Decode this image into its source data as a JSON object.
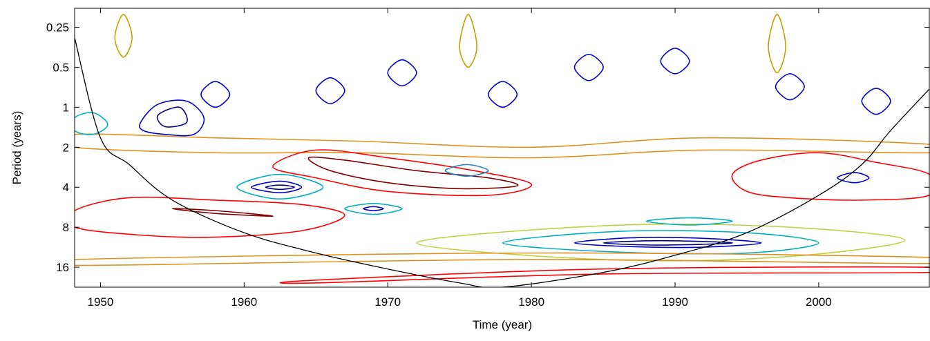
{
  "chart_data": {
    "type": "contour",
    "xlabel": "Time (year)",
    "ylabel": "Period (years)",
    "xlim": [
      1948.2,
      2007.7
    ],
    "xticks": [
      1950,
      1960,
      1970,
      1980,
      1990,
      2000
    ],
    "ylim": [
      0.18,
      22.6
    ],
    "yticks": [
      0.25,
      0.5,
      1,
      2,
      4,
      8,
      16
    ],
    "yscale": "log",
    "y_reversed": true,
    "cone": {
      "color": "#000000",
      "x": [
        1948.2,
        1950,
        1952,
        1955,
        1960,
        1965,
        1970,
        1975,
        1978,
        1985,
        1990,
        1995,
        2000,
        2003,
        2005,
        2007.7
      ],
      "values": [
        0.3,
        1.7,
        2.7,
        5,
        8.8,
        12.5,
        16.5,
        21,
        22.6,
        17.5,
        13,
        8.8,
        4.6,
        2.7,
        1.5,
        0.73
      ]
    },
    "series": [
      {
        "color": "#e09020",
        "x": [
          1948.2,
          1958,
          1968,
          1980,
          1992,
          2007.7,
          2007.7,
          1992,
          1980,
          1968,
          1958,
          1948.2
        ],
        "values": [
          1.6,
          1.7,
          1.8,
          2.0,
          1.7,
          1.9,
          2.2,
          2.1,
          2.4,
          2.2,
          2.2,
          2.0
        ]
      },
      {
        "color": "#0000cc",
        "x": [
          1952.8,
          1954,
          1956,
          1957.2,
          1956.5,
          1954.5,
          1953
        ],
        "values": [
          1.3,
          0.95,
          0.9,
          1.2,
          1.6,
          1.6,
          1.5
        ]
      },
      {
        "color": "#000080",
        "x": [
          1954,
          1955.5,
          1956,
          1954.5
        ],
        "values": [
          1.15,
          1.0,
          1.3,
          1.4
        ]
      },
      {
        "color": "#00b0c0",
        "x": [
          1959.5,
          1962.5,
          1965.5,
          1962.5
        ],
        "values": [
          4.0,
          3.2,
          4.0,
          4.9
        ]
      },
      {
        "color": "#0000cc",
        "x": [
          1960.5,
          1962.5,
          1964,
          1962.5
        ],
        "values": [
          4.0,
          3.6,
          4.0,
          4.4
        ]
      },
      {
        "color": "#000080",
        "x": [
          1961.5,
          1962.5,
          1963.5,
          1962.5
        ],
        "values": [
          4.0,
          3.85,
          4.0,
          4.15
        ]
      },
      {
        "color": "#ff0000",
        "x": [
          1962,
          1965,
          1970,
          1976,
          1980,
          1977,
          1970,
          1965
        ],
        "values": [
          2.8,
          2.1,
          2.4,
          3.0,
          3.8,
          4.6,
          4.3,
          3.4
        ]
      },
      {
        "color": "#800000",
        "x": [
          1964.5,
          1967,
          1972,
          1977,
          1979,
          1975,
          1970,
          1966
        ],
        "values": [
          2.4,
          2.5,
          3.0,
          3.4,
          3.9,
          4.1,
          3.7,
          3.0
        ]
      },
      {
        "color": "#ff0000",
        "x": [
          1948.2,
          1952,
          1958,
          1964,
          1967,
          1964,
          1958,
          1953,
          1948.2
        ],
        "values": [
          6.0,
          4.8,
          5.0,
          5.4,
          6.5,
          8.5,
          9.5,
          9.2,
          8.0
        ]
      },
      {
        "color": "#800000",
        "x": [
          1955,
          1958,
          1962,
          1958
        ],
        "values": [
          5.8,
          6.0,
          6.6,
          6.3
        ]
      },
      {
        "color": "#c0d040",
        "x": [
          1972,
          1985,
          1997,
          2006,
          1997,
          1985
        ],
        "values": [
          10.5,
          7.8,
          7.9,
          10,
          13.5,
          14
        ]
      },
      {
        "color": "#00b0c0",
        "x": [
          1978,
          1986,
          1995,
          2000,
          1995,
          1986
        ],
        "values": [
          10.5,
          8.6,
          8.8,
          10.5,
          12.5,
          12.3
        ]
      },
      {
        "color": "#0000cc",
        "x": [
          1983,
          1987,
          1992,
          1996,
          1992,
          1987
        ],
        "values": [
          10.5,
          9.6,
          9.7,
          10.5,
          11.3,
          11.2
        ]
      },
      {
        "color": "#000080",
        "x": [
          1985,
          1989,
          1994,
          1989
        ],
        "values": [
          10.5,
          10.1,
          10.5,
          10.9
        ]
      },
      {
        "color": "#ff0000",
        "x": [
          1994,
          1996,
          2000,
          2004,
          2007.7,
          2007.7,
          2003,
          1998,
          1995
        ],
        "values": [
          3.2,
          2.5,
          2.2,
          2.6,
          3.2,
          4.6,
          5.0,
          4.8,
          4.3
        ]
      },
      {
        "color": "#00b0c0",
        "x": [
          1967,
          1969,
          1971,
          1969
        ],
        "values": [
          5.8,
          5.3,
          5.8,
          6.4
        ]
      },
      {
        "color": "#0000cc",
        "x": [
          1968.3,
          1969,
          1969.7,
          1969
        ],
        "values": [
          5.8,
          5.6,
          5.8,
          6.0
        ]
      },
      {
        "color": "#00b0c0",
        "x": [
          1988,
          1991,
          1994,
          1991
        ],
        "values": [
          7.2,
          6.8,
          7.2,
          7.7
        ]
      },
      {
        "color": "#2080c0",
        "x": [
          1974,
          1975.5,
          1977,
          1975.5
        ],
        "values": [
          3.0,
          2.7,
          3.0,
          3.3
        ]
      },
      {
        "color": "#0000cc",
        "x": [
          2001.3,
          2002.5,
          2003.5,
          2002.5
        ],
        "values": [
          3.4,
          3.1,
          3.4,
          3.7
        ]
      },
      {
        "color": "#e09020",
        "x": [
          1948.2,
          1980,
          2007.7,
          2007.7,
          1980,
          1948.2
        ],
        "values": [
          14,
          12.5,
          13.5,
          15,
          14,
          15.5
        ]
      },
      {
        "color": "#ff0000",
        "x": [
          1965,
          1985,
          2007.7,
          2007.7,
          1985,
          1965
        ],
        "values": [
          20,
          16.5,
          16,
          17.5,
          18,
          21
        ]
      },
      {
        "color": "#00b0c0",
        "x": [
          1948.2,
          1949.5,
          1950.5,
          1949.5,
          1948.2
        ],
        "values": [
          1.2,
          1.1,
          1.35,
          1.6,
          1.5
        ]
      },
      {
        "color": "#0000cc",
        "x": [
          1957,
          1958,
          1959,
          1958
        ],
        "values": [
          0.8,
          0.64,
          0.8,
          1.0
        ]
      },
      {
        "color": "#0000cc",
        "x": [
          1965,
          1966,
          1967,
          1966
        ],
        "values": [
          0.75,
          0.6,
          0.75,
          0.94
        ]
      },
      {
        "color": "#0000cc",
        "x": [
          1970,
          1971,
          1972,
          1971
        ],
        "values": [
          0.55,
          0.44,
          0.55,
          0.69
        ]
      },
      {
        "color": "#0000cc",
        "x": [
          1977,
          1978,
          1979,
          1978
        ],
        "values": [
          0.8,
          0.64,
          0.8,
          1.0
        ]
      },
      {
        "color": "#0000cc",
        "x": [
          1983,
          1984,
          1985,
          1984
        ],
        "values": [
          0.5,
          0.4,
          0.5,
          0.63
        ]
      },
      {
        "color": "#0000cc",
        "x": [
          1989,
          1990,
          1991,
          1990
        ],
        "values": [
          0.45,
          0.36,
          0.45,
          0.56
        ]
      },
      {
        "color": "#0000cc",
        "x": [
          1997,
          1998,
          1999,
          1998
        ],
        "values": [
          0.7,
          0.56,
          0.7,
          0.88
        ]
      },
      {
        "color": "#0000cc",
        "x": [
          2003,
          2004,
          2005,
          2004
        ],
        "values": [
          0.9,
          0.72,
          0.9,
          1.13
        ]
      },
      {
        "color": "#c0a000",
        "x": [
          1951,
          1951.6,
          1952.2,
          1951.6
        ],
        "values": [
          0.3,
          0.2,
          0.3,
          0.42
        ]
      },
      {
        "color": "#c0a000",
        "x": [
          1975,
          1975.6,
          1976.2,
          1975.6
        ],
        "values": [
          0.35,
          0.2,
          0.35,
          0.5
        ]
      },
      {
        "color": "#c0a000",
        "x": [
          1996.5,
          1997.1,
          1997.7,
          1997.1
        ],
        "values": [
          0.35,
          0.2,
          0.35,
          0.55
        ]
      }
    ]
  }
}
